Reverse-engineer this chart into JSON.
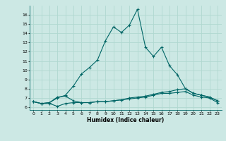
{
  "xlabel": "Humidex (Indice chaleur)",
  "ylabel": "",
  "bg_color": "#cce8e4",
  "grid_color": "#b0d8d0",
  "line_color": "#006666",
  "xlim": [
    -0.5,
    23.5
  ],
  "ylim": [
    5.7,
    17.0
  ],
  "xticks": [
    0,
    1,
    2,
    3,
    4,
    5,
    6,
    7,
    8,
    9,
    10,
    11,
    12,
    13,
    14,
    15,
    16,
    17,
    18,
    19,
    20,
    21,
    22,
    23
  ],
  "yticks": [
    6,
    7,
    8,
    9,
    10,
    11,
    12,
    13,
    14,
    15,
    16
  ],
  "line1_x": [
    0,
    1,
    2,
    3,
    4,
    5,
    6,
    7,
    8,
    9,
    10,
    11,
    12,
    13,
    14,
    15,
    16,
    17,
    18,
    19,
    20,
    21,
    22,
    23
  ],
  "line1_y": [
    6.6,
    6.4,
    6.5,
    7.1,
    7.2,
    6.7,
    6.5,
    6.5,
    6.6,
    6.6,
    6.7,
    6.8,
    7.0,
    7.1,
    7.2,
    7.4,
    7.6,
    7.7,
    7.9,
    8.0,
    7.5,
    7.3,
    7.1,
    6.7
  ],
  "line2_x": [
    0,
    1,
    2,
    3,
    4,
    5,
    6,
    7,
    8,
    9,
    10,
    11,
    12,
    13,
    14,
    15,
    16,
    17,
    18,
    19,
    20,
    21,
    22,
    23
  ],
  "line2_y": [
    6.6,
    6.4,
    6.4,
    6.1,
    6.4,
    6.5,
    6.5,
    6.5,
    6.6,
    6.6,
    6.7,
    6.8,
    6.9,
    7.0,
    7.1,
    7.3,
    7.5,
    7.5,
    7.6,
    7.7,
    7.3,
    7.1,
    7.0,
    6.5
  ],
  "line3_x": [
    0,
    1,
    2,
    3,
    4,
    5,
    6,
    7,
    8,
    9,
    10,
    11,
    12,
    13,
    14,
    15,
    16,
    17,
    18,
    19,
    20,
    21,
    22,
    23
  ],
  "line3_y": [
    6.6,
    6.4,
    6.5,
    7.0,
    7.3,
    8.3,
    9.6,
    10.3,
    11.1,
    13.2,
    14.7,
    14.1,
    14.9,
    16.6,
    12.5,
    11.5,
    12.5,
    10.5,
    9.5,
    8.0,
    7.5,
    7.3,
    7.1,
    6.7
  ]
}
